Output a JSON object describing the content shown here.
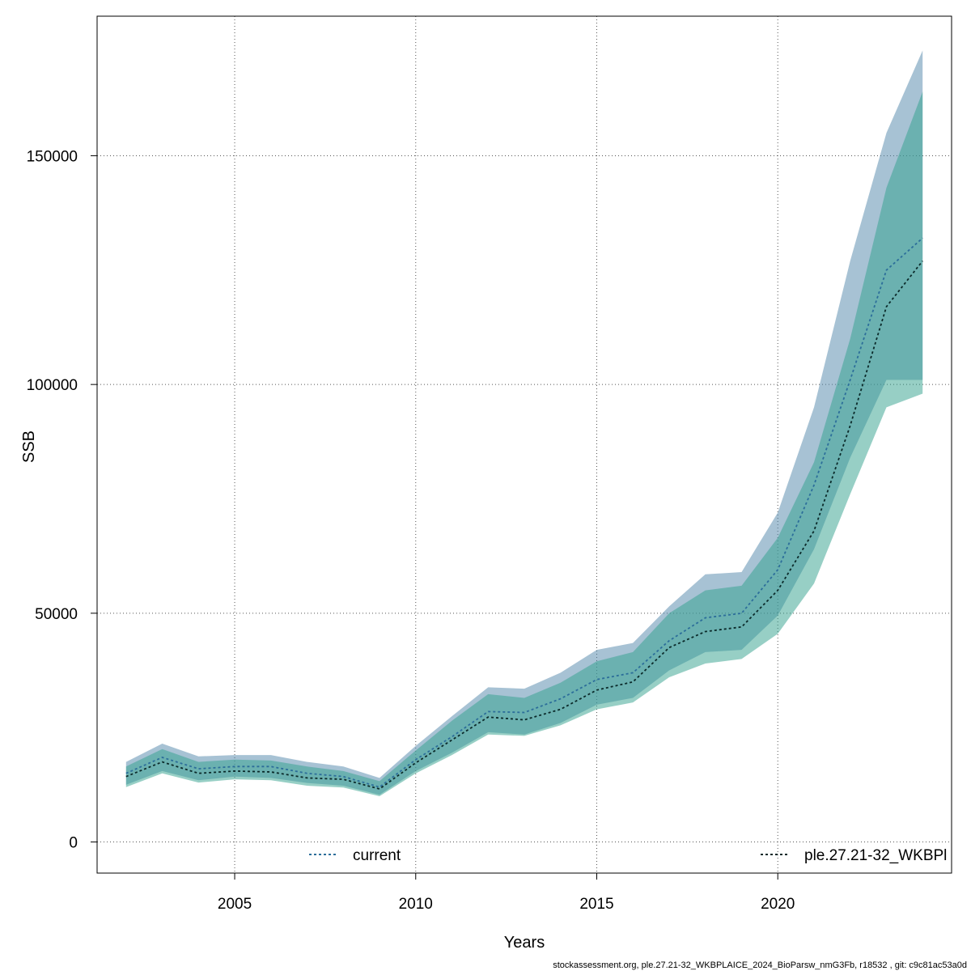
{
  "chart_data": {
    "type": "area",
    "xlabel": "Years",
    "ylabel": "SSB",
    "xlim": [
      2001.2,
      2024.8
    ],
    "ylim": [
      -6800,
      180500
    ],
    "x_ticks": [
      2005,
      2010,
      2015,
      2020
    ],
    "y_ticks": [
      0,
      50000,
      100000,
      150000
    ],
    "grid": true,
    "x": [
      2002,
      2003,
      2004,
      2005,
      2006,
      2007,
      2008,
      2009,
      2010,
      2011,
      2012,
      2013,
      2014,
      2015,
      2016,
      2017,
      2018,
      2019,
      2020,
      2021,
      2022,
      2023,
      2024
    ],
    "series": [
      {
        "name": "current",
        "color": "#2c6e9a",
        "band_color": "#4f86aa",
        "values": [
          15000,
          18500,
          16000,
          16500,
          16500,
          15000,
          14300,
          12000,
          18000,
          23000,
          28500,
          28300,
          31300,
          35500,
          37000,
          44000,
          49000,
          50000,
          59500,
          78000,
          101000,
          125000,
          132000
        ],
        "lower": [
          12500,
          15500,
          13500,
          14300,
          14000,
          12900,
          12300,
          10300,
          15500,
          19500,
          24000,
          23500,
          26000,
          30000,
          31500,
          37500,
          41500,
          42000,
          49500,
          64000,
          84000,
          101000,
          101000
        ],
        "upper": [
          17500,
          21500,
          18700,
          19000,
          19000,
          17500,
          16500,
          14000,
          21000,
          27500,
          33800,
          33500,
          37000,
          42000,
          43500,
          51500,
          58500,
          59000,
          72000,
          95000,
          127000,
          155000,
          173000
        ]
      },
      {
        "name": "ple.27.21-32_WKBPl",
        "color": "#0b2a2a",
        "band_color": "#2fa08c",
        "values": [
          14300,
          17500,
          15000,
          15500,
          15300,
          14000,
          13700,
          11600,
          17300,
          22300,
          27300,
          26700,
          29000,
          33200,
          35000,
          42500,
          46000,
          47000,
          55000,
          68000,
          91000,
          117000,
          127000
        ],
        "lower": [
          12000,
          15000,
          13000,
          13700,
          13500,
          12300,
          11900,
          10000,
          15000,
          19000,
          23500,
          23200,
          25500,
          29000,
          30500,
          36000,
          39000,
          40000,
          45500,
          56500,
          76000,
          95000,
          98000
        ],
        "upper": [
          16500,
          20300,
          17500,
          18000,
          17800,
          16500,
          15500,
          13300,
          20000,
          26500,
          32300,
          31500,
          34800,
          39500,
          41500,
          50000,
          55000,
          56000,
          66500,
          83000,
          110000,
          143000,
          164000
        ]
      }
    ],
    "legend": [
      "current",
      "ple.27.21-32_WKBPl"
    ]
  },
  "footer": "stockassessment.org, ple.27.21-32_WKBPLAICE_2024_BioParsw_nmG3Fb, r18532 , git: c9c81ac53a0d"
}
